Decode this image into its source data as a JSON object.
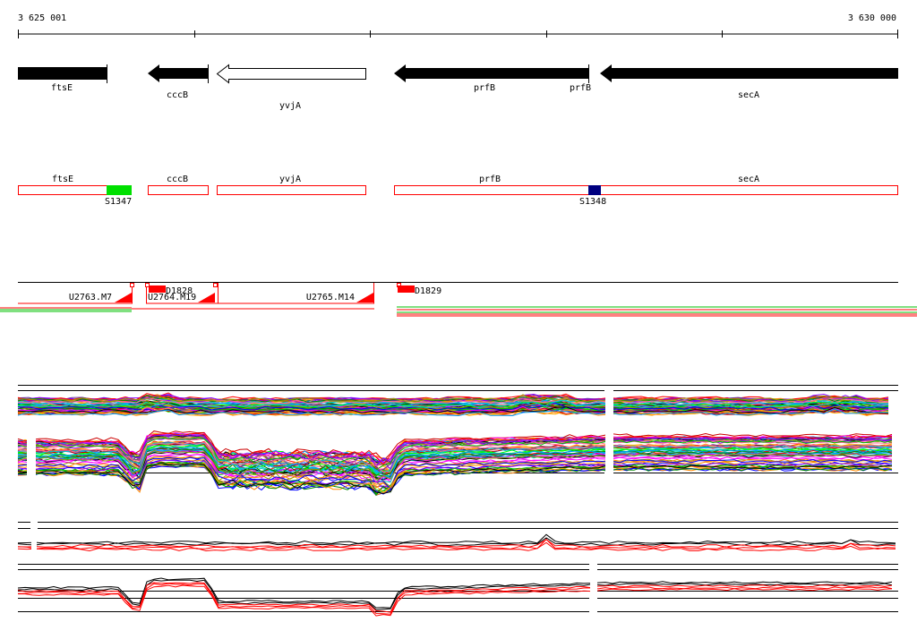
{
  "ruler": {
    "start_label": "3 625 001",
    "end_label": "3 630 000",
    "start_bp": 3625001,
    "end_bp": 3630000
  },
  "genes": [
    {
      "name": "ftsE",
      "strand": "-",
      "filled": true
    },
    {
      "name": "cccB",
      "strand": "-",
      "filled": true
    },
    {
      "name": "yvjA",
      "strand": "-",
      "filled": false
    },
    {
      "name": "prfB",
      "strand": "-",
      "filled": true
    },
    {
      "name": "prfB",
      "strand": "-",
      "filled": true
    },
    {
      "name": "secA",
      "strand": "-",
      "filled": true
    }
  ],
  "segment_track": {
    "genes": [
      "ftsE",
      "cccB",
      "yvjA",
      "prfB",
      "secA"
    ],
    "markers": [
      {
        "label": "S1347",
        "color": "#00e000"
      },
      {
        "label": "S1348",
        "color": "#000080"
      }
    ],
    "outline_color": "#ff0000"
  },
  "transcription_units": {
    "terminators": [
      "U2763.M7",
      "U2764.M19",
      "U2765.M14"
    ],
    "promoters": [
      "D1828",
      "D1829"
    ],
    "color": "#ff0000"
  },
  "colors": {
    "gene_fill": "#000000",
    "segment_outline": "#ff0000",
    "signal_line": "#ff0000",
    "baseline": "#000000"
  }
}
